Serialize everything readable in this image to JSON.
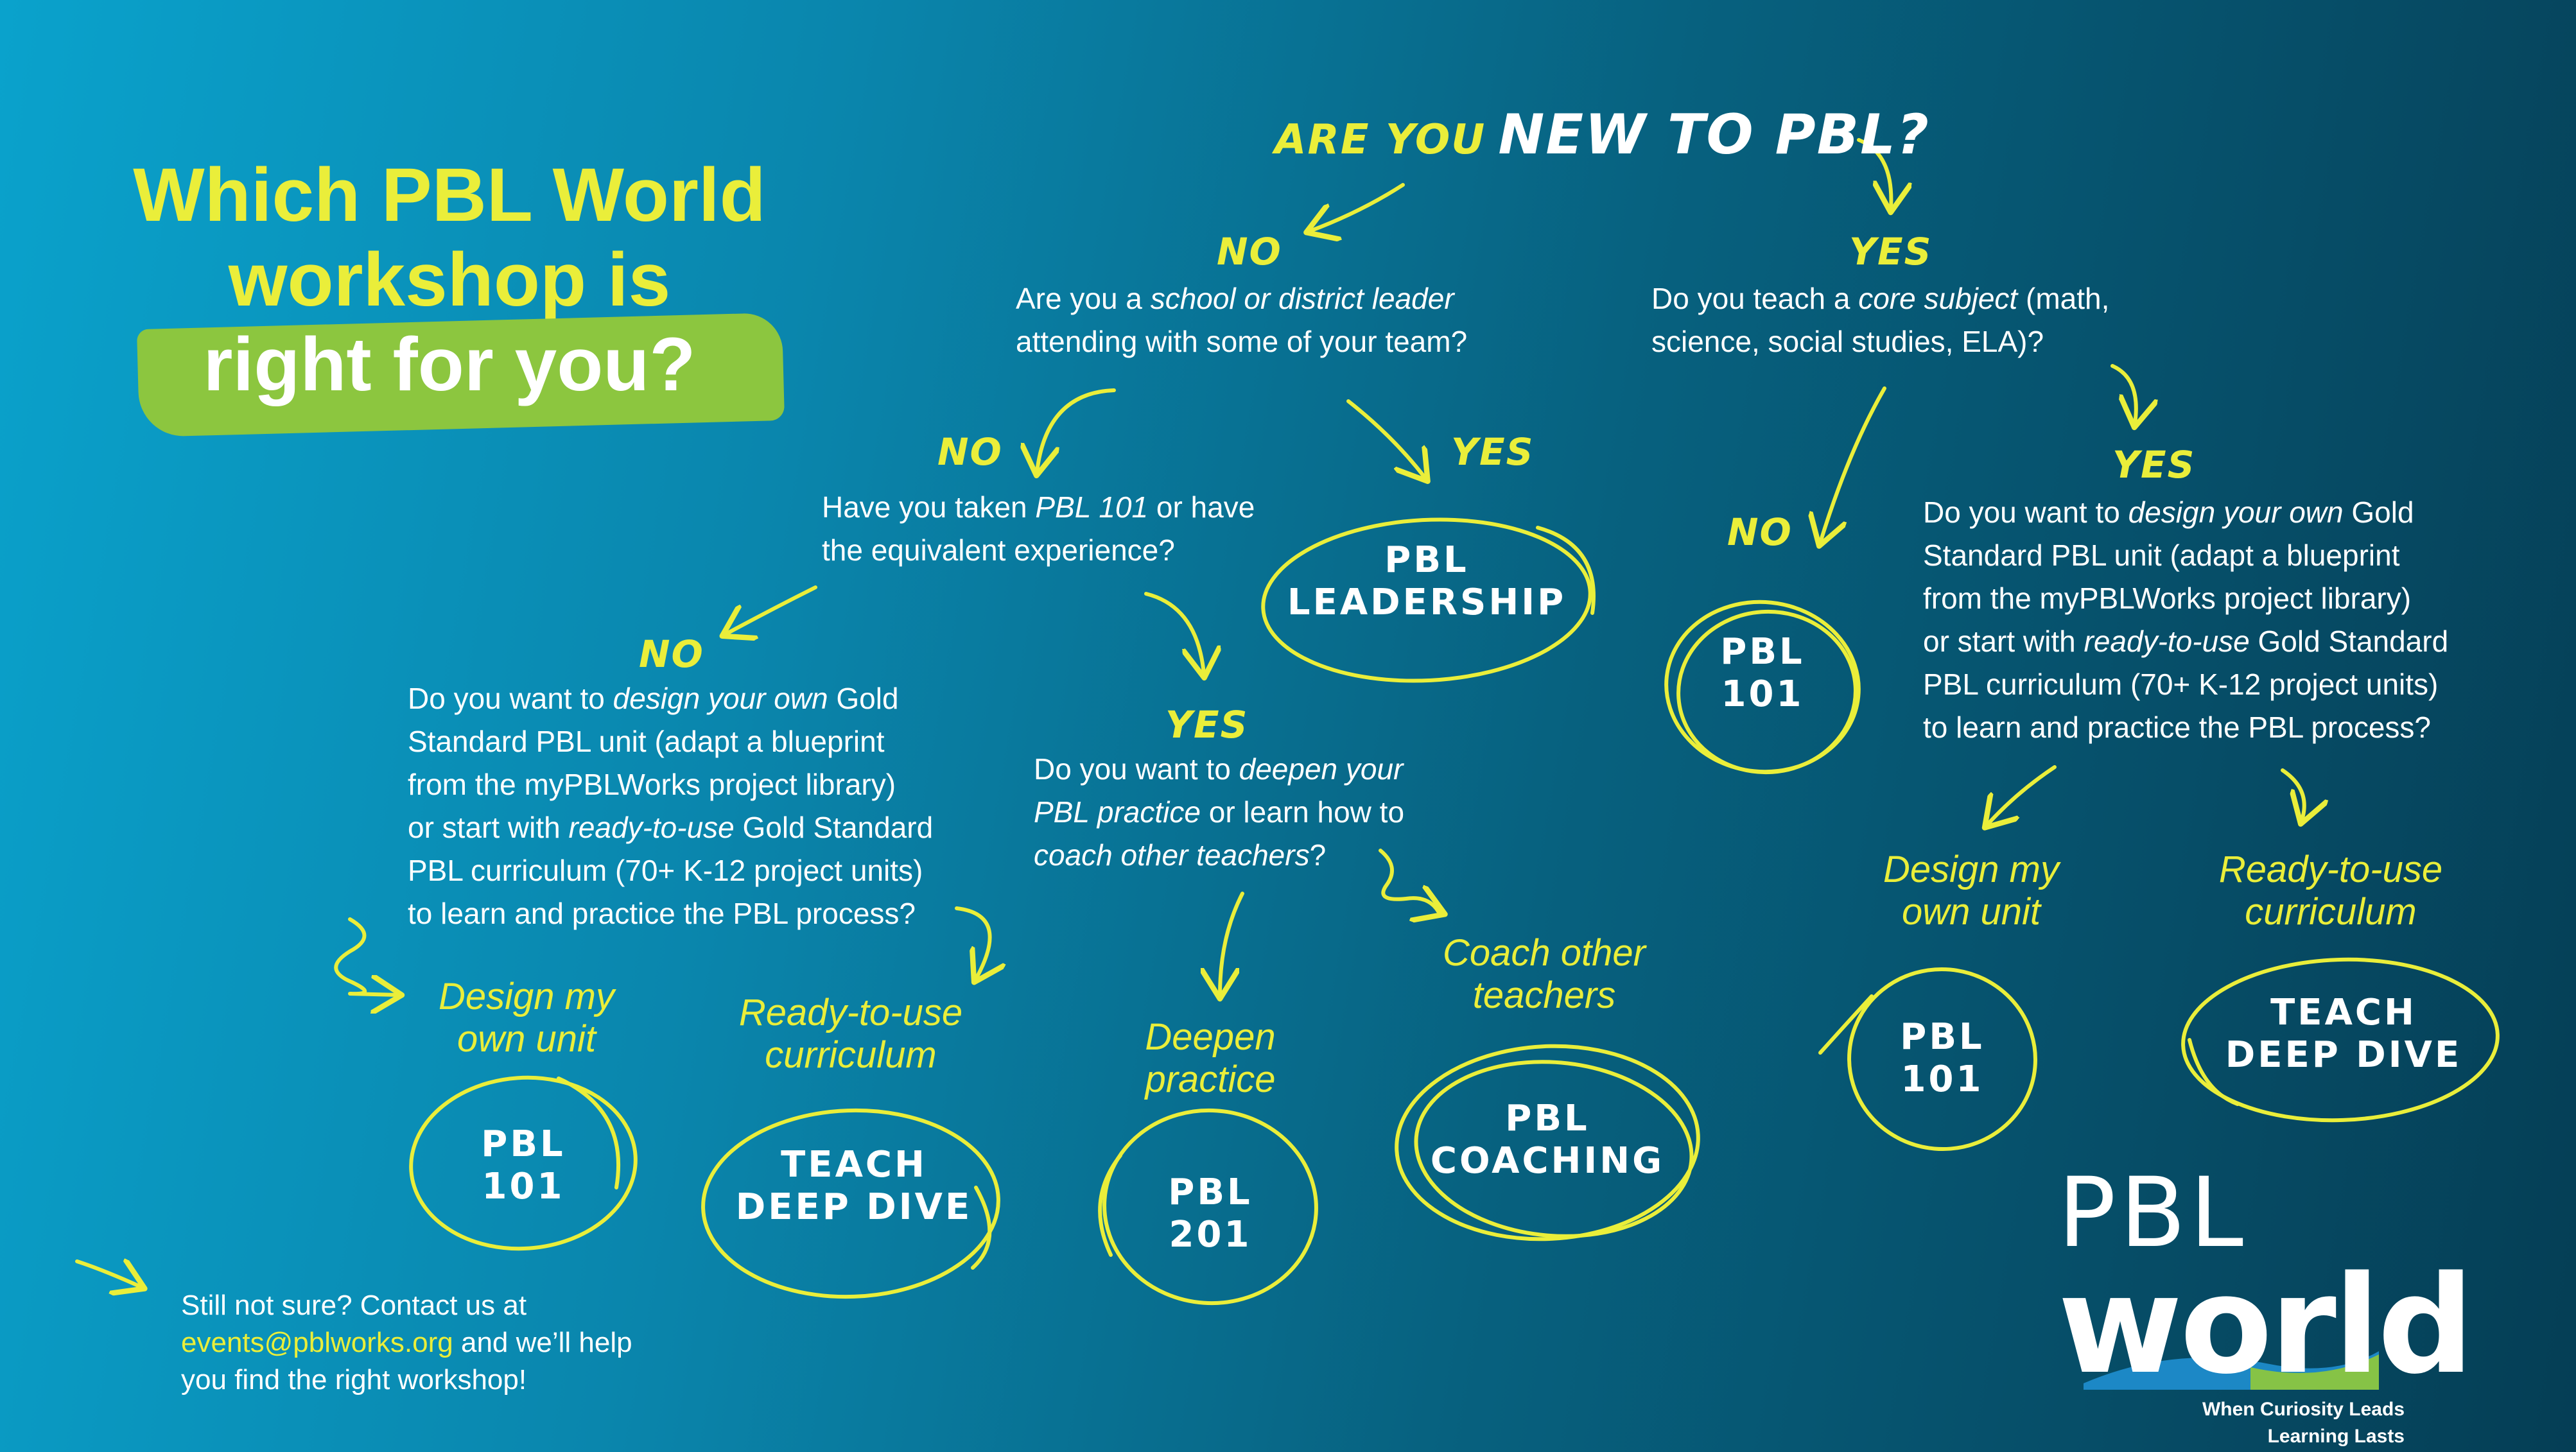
{
  "title": {
    "line1": "Which PBL World",
    "line2": "workshop is",
    "line3": "right for you?"
  },
  "root": {
    "prefix": "ARE YOU",
    "main": "NEW TO PBL?"
  },
  "labels": {
    "no": "NO",
    "yes": "YES"
  },
  "q_leader": {
    "part1": "Are you a ",
    "em": "school or district leader",
    "part2": "attending with some of your team?"
  },
  "q_core": {
    "part1": "Do you teach a ",
    "em": "core subject",
    "part2": " (math,",
    "part3": "science, social studies, ELA)?"
  },
  "q_pbl101": {
    "part1": "Have you taken ",
    "em": "PBL 101",
    "part2": " or have",
    "part3": "the equivalent experience?"
  },
  "q_design": {
    "l1a": "Do you want to ",
    "l1em": "design your own",
    "l1b": " Gold",
    "l2": "Standard PBL unit (adapt a  blueprint",
    "l3": "from the myPBLWorks project library)",
    "l4a": "or start with ",
    "l4em": "ready-to-use",
    "l4b": " Gold Standard",
    "l5": "PBL curriculum (70+ K-12 project units)",
    "l6": "to learn and practice the PBL process?"
  },
  "q_deepen": {
    "l1a": "Do you want to ",
    "l1em": "deepen your",
    "l2em": "PBL practice",
    "l2b": " or learn how to",
    "l3em": "coach other teachers",
    "l3b": "?"
  },
  "options": {
    "design_l1": "Design my",
    "design_l2": "own unit",
    "ready_l1": "Ready-to-use",
    "ready_l2": "curriculum",
    "deepen_l1": "Deepen",
    "deepen_l2": "practice",
    "coach_l1": "Coach other",
    "coach_l2": "teachers"
  },
  "results": {
    "pbl": "PBL",
    "leadership": "LEADERSHIP",
    "n101": "101",
    "n201": "201",
    "coaching": "COACHING",
    "teach": "TEACH",
    "deep_dive": "DEEP DIVE"
  },
  "footer": {
    "line1": "Still not sure? Contact us at",
    "email": "events@pblworks.org",
    "line2b": " and we’ll help",
    "line3": "you find the right workshop!"
  },
  "logo": {
    "pbl": "PBL",
    "world": "world",
    "tagline1": "When Curiosity Leads",
    "tagline2": "Learning Lasts"
  },
  "colors": {
    "accent": "#eaee3a",
    "brush": "#8cc63f",
    "text": "#ffffff",
    "bg_left": "#0aa2cc",
    "bg_right": "#053e55"
  }
}
